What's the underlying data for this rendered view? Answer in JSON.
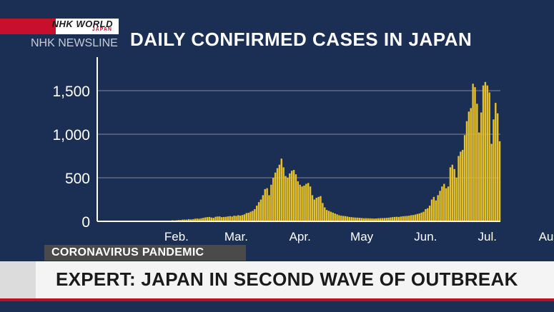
{
  "broadcast": {
    "logo_text": "NHK WORLD",
    "logo_sub": "JAPAN",
    "program": "NHK NEWSLINE"
  },
  "headline": {
    "tag": "CORONAVIRUS PANDEMIC",
    "text": "EXPERT: JAPAN IN SECOND WAVE OF OUTBREAK"
  },
  "colors": {
    "background": "#1b2f55",
    "bar": "#e6c02a",
    "axis": "#ffffff",
    "grid": "#7c879e"
  },
  "chart_data": {
    "type": "bar",
    "title": "DAILY CONFIRMED CASES IN JAPAN",
    "xlabel": "",
    "ylabel": "",
    "ylim": [
      0,
      1700
    ],
    "yticks": [
      0,
      500,
      1000,
      1500
    ],
    "ytick_labels": [
      "0",
      "500",
      "1,000",
      "1,500"
    ],
    "grid": true,
    "x_start": "2020-01-16",
    "month_ticks": [
      {
        "label": "Feb.",
        "date": "2020-02-15"
      },
      {
        "label": "Mar.",
        "date": "2020-03-15"
      },
      {
        "label": "Apr.",
        "date": "2020-04-15"
      },
      {
        "label": "May",
        "date": "2020-05-15"
      },
      {
        "label": "Jun.",
        "date": "2020-06-15"
      },
      {
        "label": "Jul.",
        "date": "2020-07-15"
      },
      {
        "label": "Aug.",
        "date": "2020-08-15"
      }
    ],
    "values": [
      0,
      0,
      0,
      0,
      0,
      0,
      0,
      0,
      0,
      0,
      0,
      0,
      0,
      0,
      0,
      0,
      0,
      0,
      0,
      0,
      2,
      4,
      5,
      6,
      4,
      6,
      6,
      8,
      12,
      10,
      12,
      15,
      15,
      20,
      20,
      20,
      25,
      22,
      25,
      30,
      32,
      30,
      35,
      40,
      45,
      48,
      50,
      44,
      40,
      52,
      55,
      56,
      48,
      50,
      52,
      56,
      60,
      55,
      65,
      62,
      70,
      66,
      72,
      80,
      95,
      98,
      110,
      120,
      140,
      180,
      220,
      250,
      300,
      370,
      380,
      300,
      420,
      500,
      560,
      610,
      650,
      720,
      620,
      520,
      500,
      550,
      580,
      590,
      540,
      460,
      420,
      400,
      410,
      430,
      440,
      400,
      300,
      250,
      270,
      280,
      290,
      210,
      160,
      130,
      120,
      110,
      100,
      90,
      80,
      70,
      65,
      62,
      60,
      55,
      50,
      48,
      45,
      43,
      42,
      40,
      38,
      35,
      36,
      35,
      34,
      33,
      32,
      33,
      35,
      36,
      37,
      38,
      40,
      42,
      45,
      48,
      50,
      52,
      50,
      55,
      58,
      60,
      62,
      65,
      70,
      72,
      78,
      85,
      90,
      100,
      110,
      140,
      150,
      180,
      250,
      280,
      240,
      300,
      350,
      400,
      430,
      380,
      400,
      620,
      650,
      600,
      500,
      750,
      800,
      820,
      990,
      1150,
      1260,
      1300,
      1580,
      1540,
      1350,
      1020,
      1250,
      1560,
      1600,
      1560,
      1480,
      890,
      1170,
      1360,
      1240,
      920
    ]
  }
}
